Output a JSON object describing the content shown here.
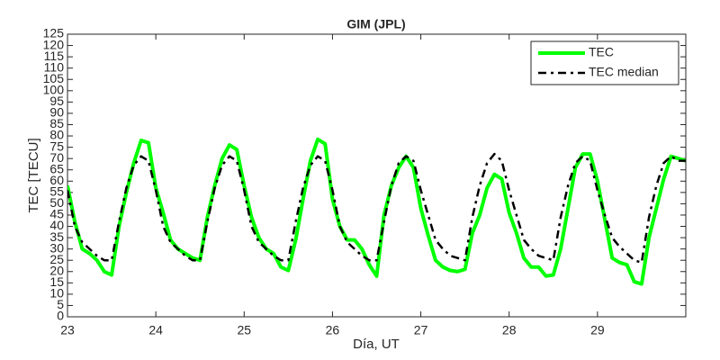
{
  "chart_data": {
    "type": "line",
    "title": "GIM (JPL)",
    "x_label": "Día, UT",
    "y_label": "TEC [TECU]",
    "x": [
      23,
      23.0833,
      23.1667,
      23.25,
      23.3333,
      23.4167,
      23.5,
      23.5833,
      23.6667,
      23.75,
      23.8333,
      23.9167,
      24,
      24.0833,
      24.1667,
      24.25,
      24.3333,
      24.4167,
      24.5,
      24.5833,
      24.6667,
      24.75,
      24.8333,
      24.9167,
      25,
      25.0833,
      25.1667,
      25.25,
      25.3333,
      25.4167,
      25.5,
      25.5833,
      25.6667,
      25.75,
      25.8333,
      25.9167,
      26,
      26.0833,
      26.1667,
      26.25,
      26.3333,
      26.4167,
      26.5,
      26.5833,
      26.6667,
      26.75,
      26.8333,
      26.9167,
      27,
      27.0833,
      27.1667,
      27.25,
      27.3333,
      27.4167,
      27.5,
      27.5833,
      27.6667,
      27.75,
      27.8333,
      27.9167,
      28,
      28.0833,
      28.1667,
      28.25,
      28.3333,
      28.4167,
      28.5,
      28.5833,
      28.6667,
      28.75,
      28.8333,
      28.9167,
      29,
      29.0833,
      29.1667,
      29.25,
      29.3333,
      29.4167,
      29.5,
      29.5833,
      29.6667,
      29.75,
      29.8333,
      29.9167,
      30
    ],
    "series": [
      {
        "name": "TEC",
        "color": "#00ff00",
        "values": [
          58,
          42,
          30,
          28,
          25,
          20,
          18.5,
          40,
          55,
          68,
          78,
          77,
          57,
          46,
          34,
          30,
          28,
          26,
          25,
          44,
          58,
          70,
          76,
          74,
          58,
          44,
          35,
          30,
          28,
          22,
          20.5,
          34,
          52,
          69,
          78.5,
          76.5,
          52,
          40,
          34,
          34,
          30,
          23,
          18,
          45,
          58,
          66,
          71,
          66,
          48,
          36,
          25,
          22,
          20.5,
          20,
          21,
          37,
          45,
          57,
          63,
          61,
          46,
          37,
          26,
          22,
          22,
          18,
          18.5,
          30,
          48,
          66,
          72,
          72,
          60,
          43,
          26,
          24,
          23,
          15.5,
          14.5,
          35,
          48,
          61,
          71,
          70,
          69
        ]
      },
      {
        "name": "TEC median",
        "color": "#000000",
        "values": [
          56,
          40,
          33,
          30,
          27,
          25,
          25,
          42,
          57,
          67,
          71,
          69,
          56,
          40,
          33,
          30,
          27,
          25,
          25,
          42,
          57,
          67,
          71,
          69,
          56,
          40,
          33,
          30,
          27,
          25,
          25,
          42,
          57,
          67,
          71,
          69,
          56,
          40,
          33,
          30,
          27,
          25,
          25,
          42,
          58,
          68,
          71,
          69,
          56,
          45,
          34,
          30,
          27,
          26,
          25,
          44,
          58,
          68,
          72,
          69,
          56,
          45,
          34,
          30,
          27,
          26,
          25,
          44,
          58,
          68,
          71,
          69,
          56,
          45,
          35,
          31,
          28,
          25,
          24,
          44,
          58,
          68,
          71,
          69,
          69
        ]
      }
    ],
    "xlim": [
      23,
      30
    ],
    "xticks": [
      23,
      24,
      25,
      26,
      27,
      28,
      29
    ],
    "ylim": [
      0,
      125
    ],
    "yticks": [
      0,
      5,
      10,
      15,
      20,
      25,
      30,
      35,
      40,
      45,
      50,
      55,
      60,
      65,
      70,
      75,
      80,
      85,
      90,
      95,
      100,
      105,
      110,
      115,
      120,
      125
    ],
    "legend": "upper right",
    "grid": false
  }
}
